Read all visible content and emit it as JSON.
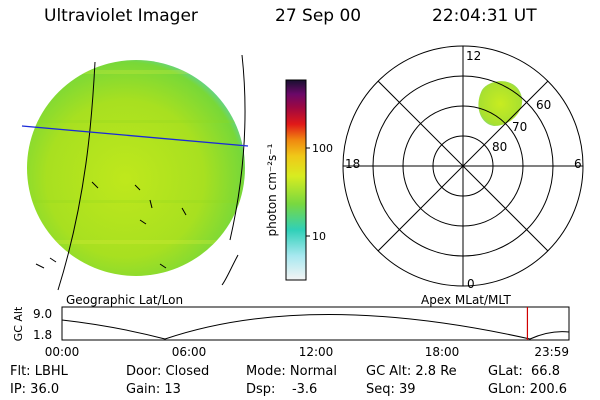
{
  "header": {
    "title": "Ultraviolet Imager",
    "date": "27 Sep 00",
    "time": "22:04:31 UT"
  },
  "labels": {
    "geo_map": "Geographic Lat/Lon",
    "apex_map": "Apex MLat/MLT"
  },
  "colorbar": {
    "unit_label": "photon cm⁻²s⁻¹",
    "ticks": [
      "100",
      "10"
    ]
  },
  "polar_plot": {
    "mlt_labels": {
      "top": "12",
      "left": "18",
      "right": "6",
      "bottom": "0"
    },
    "lat_labels": [
      "60",
      "70",
      "80"
    ]
  },
  "altitude_plot": {
    "y_label": "GC Alt",
    "y_ticks": [
      "9.0",
      "1.8"
    ],
    "x_ticks": [
      "00:00",
      "06:00",
      "12:00",
      "18:00",
      "23:59"
    ],
    "current_time_fraction": 0.918
  },
  "info": {
    "flt_label": "Flt: LBHL",
    "ip_label": "IP: 36.0",
    "door_label": "Door: Closed",
    "gain_label": "Gain: 13",
    "mode_label": "Mode: Normal",
    "dsp_label": "Dsp:    -3.6",
    "gcalt_label": "GC Alt: 2.8 Re",
    "seq_label": "Seq: 39",
    "glat_label": "GLat:  66.8",
    "glon_label": "GLon: 200.6"
  }
}
